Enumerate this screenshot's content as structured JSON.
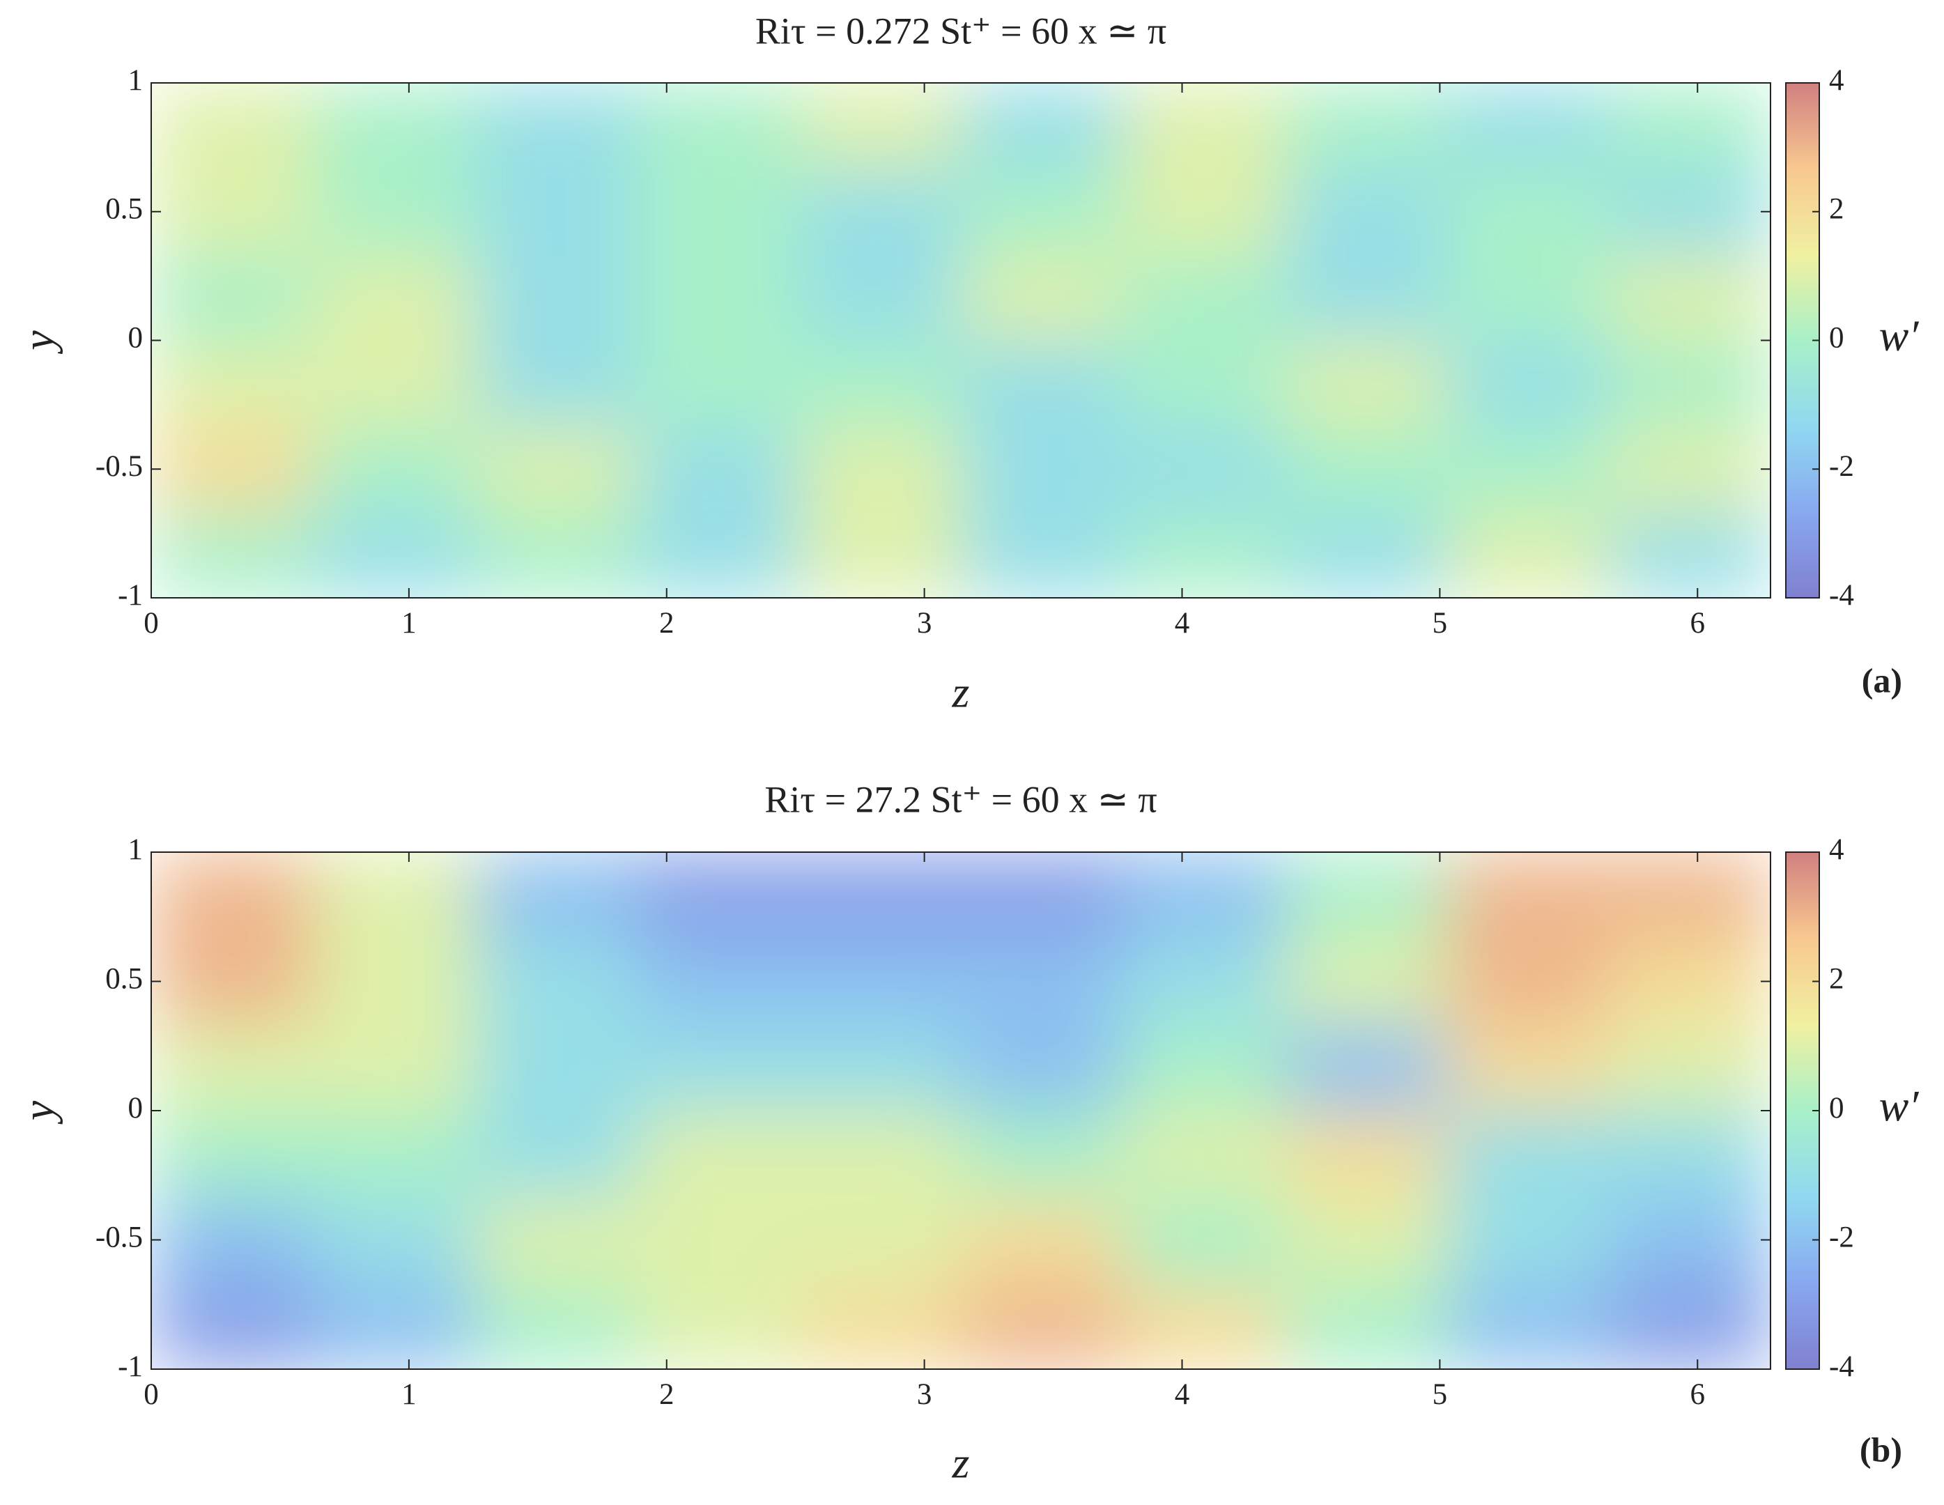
{
  "chart_data": [
    {
      "type": "heatmap",
      "title": "Riτ = 0.272    St⁺ = 60    x ≃ π",
      "xlabel": "z",
      "ylabel": "y",
      "colorbar_label": "w′",
      "panel_label": "(a)",
      "xlim": [
        0,
        6.2832
      ],
      "ylim": [
        -1,
        1
      ],
      "xticks": [
        0,
        1,
        2,
        3,
        4,
        5,
        6
      ],
      "yticks": [
        -1,
        -0.5,
        0,
        0.5,
        1
      ],
      "clim": [
        -4,
        4
      ],
      "cticks": [
        -4,
        -2,
        0,
        2,
        4
      ],
      "colormap": [
        "#8080d0",
        "#88a8f0",
        "#90d8f0",
        "#a8f0c8",
        "#f0f0a0",
        "#f8c890",
        "#d08080"
      ],
      "field": [
        [
          1,
          0,
          -1,
          0,
          1,
          -1,
          1,
          0,
          -1,
          0
        ],
        [
          1,
          0,
          -1,
          0,
          -1,
          0,
          1,
          -1,
          0,
          -1
        ],
        [
          0,
          1,
          -1,
          0,
          -1,
          1,
          0,
          -1,
          0,
          1
        ],
        [
          1,
          1,
          -1,
          0,
          0,
          -1,
          0,
          1,
          -1,
          0
        ],
        [
          2,
          0,
          1,
          -1,
          1,
          -1,
          -1,
          0,
          0,
          1
        ],
        [
          0,
          -1,
          0,
          -1,
          1,
          -1,
          0,
          -1,
          1,
          -1
        ]
      ]
    },
    {
      "type": "heatmap",
      "title": "Riτ = 27.2    St⁺ = 60    x ≃ π",
      "xlabel": "z",
      "ylabel": "y",
      "colorbar_label": "w′",
      "panel_label": "(b)",
      "xlim": [
        0,
        6.2832
      ],
      "ylim": [
        -1,
        1
      ],
      "xticks": [
        0,
        1,
        2,
        3,
        4,
        5,
        6
      ],
      "yticks": [
        -1,
        -0.5,
        0,
        0.5,
        1
      ],
      "clim": [
        -4,
        4
      ],
      "cticks": [
        -4,
        -2,
        0,
        2,
        4
      ],
      "colormap": [
        "#8080d0",
        "#88a8f0",
        "#90d8f0",
        "#a8f0c8",
        "#f0f0a0",
        "#f8c890",
        "#d08080"
      ],
      "field": [
        [
          3,
          1,
          -2,
          -3,
          -3,
          -3,
          -2,
          0,
          3,
          3
        ],
        [
          3,
          1,
          -1,
          -2,
          -2,
          -2,
          -1,
          1,
          3,
          2
        ],
        [
          1,
          1,
          -1,
          -1,
          -1,
          -2,
          0,
          -2,
          2,
          1
        ],
        [
          0,
          0,
          -1,
          1,
          1,
          0,
          1,
          2,
          -1,
          -1
        ],
        [
          -2,
          -1,
          1,
          1,
          1,
          2,
          0,
          1,
          -1,
          -2
        ],
        [
          -3,
          -2,
          0,
          1,
          2,
          3,
          2,
          0,
          -2,
          -3
        ]
      ]
    }
  ]
}
